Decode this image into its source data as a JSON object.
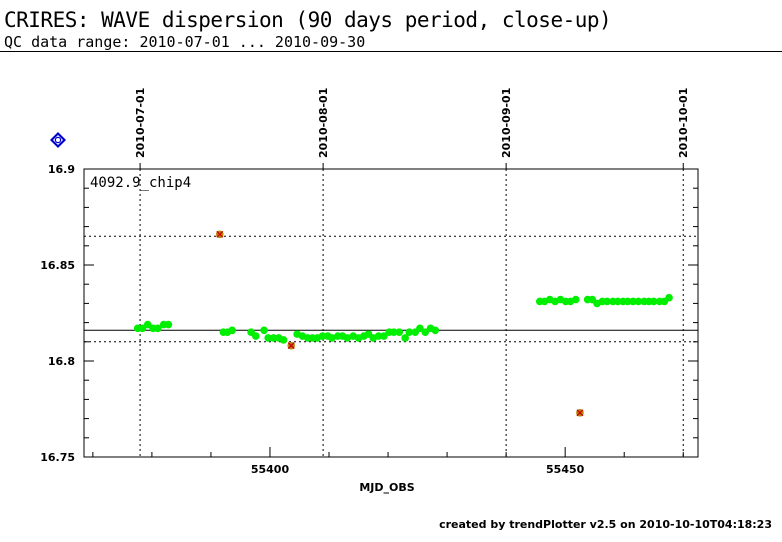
{
  "header": {
    "title": "CRIRES: WAVE dispersion (90 days period, close-up)",
    "subtitle": "QC data range: 2010-07-01 ... 2010-09-30"
  },
  "footer": {
    "prefix": "created by ",
    "tool": "trendPlotter v2.5",
    "middle": " on ",
    "timestamp": "2010-10-10T04:18:23"
  },
  "chart_data": {
    "type": "scatter",
    "xlabel": "MJD_OBS",
    "ylabel": "",
    "xlim": [
      55368.5,
      55472.5
    ],
    "ylim": [
      16.75,
      16.9
    ],
    "y_ticks": [
      16.75,
      16.8,
      16.85,
      16.9
    ],
    "y_tick_labels": [
      "16.75",
      "16.8",
      "16.85",
      "16.9"
    ],
    "x_ticks": [
      55400,
      55450
    ],
    "x_tick_labels": [
      "55400",
      "55450"
    ],
    "date_ticks": [
      {
        "mjd": 55378,
        "label": "2010-07-01"
      },
      {
        "mjd": 55409,
        "label": "2010-08-01"
      },
      {
        "mjd": 55440,
        "label": "2010-09-01"
      },
      {
        "mjd": 55470,
        "label": "2010-10-01"
      }
    ],
    "panel_label": "4092.9_chip4",
    "marker_icon": "blue-diamond-icon",
    "grid": true,
    "reference_lines": {
      "mean": 16.816,
      "upper": 16.865,
      "lower": 16.81
    },
    "colors": {
      "ok_points": "#00ee00",
      "outlier_points": "#b8860b",
      "outlier_mark": "#cc0000",
      "marker": "#0000cc"
    },
    "series": [
      {
        "values": [
          [
            55377.6,
            16.817
          ],
          [
            55378.4,
            16.817
          ],
          [
            55379.3,
            16.819
          ],
          [
            55380.2,
            16.817
          ],
          [
            55381.0,
            16.817
          ],
          [
            55382.0,
            16.819
          ],
          [
            55382.8,
            16.819
          ],
          [
            55392.1,
            16.815
          ],
          [
            55392.8,
            16.815
          ],
          [
            55393.6,
            16.816
          ],
          [
            55396.8,
            16.815
          ],
          [
            55397.6,
            16.813
          ],
          [
            55399.0,
            16.816
          ],
          [
            55399.7,
            16.812
          ],
          [
            55400.6,
            16.812
          ],
          [
            55401.5,
            16.812
          ],
          [
            55402.3,
            16.811
          ],
          [
            55404.6,
            16.814
          ],
          [
            55405.5,
            16.813
          ],
          [
            55406.4,
            16.812
          ],
          [
            55407.2,
            16.812
          ],
          [
            55408.0,
            16.812
          ],
          [
            55408.9,
            16.813
          ],
          [
            55409.8,
            16.813
          ],
          [
            55410.5,
            16.812
          ],
          [
            55411.5,
            16.813
          ],
          [
            55412.3,
            16.813
          ],
          [
            55413.1,
            16.812
          ],
          [
            55414.1,
            16.813
          ],
          [
            55415.0,
            16.812
          ],
          [
            55415.9,
            16.813
          ],
          [
            55416.7,
            16.814
          ],
          [
            55417.5,
            16.812
          ],
          [
            55418.4,
            16.813
          ],
          [
            55419.3,
            16.813
          ],
          [
            55420.2,
            16.815
          ],
          [
            55421.0,
            16.815
          ],
          [
            55421.9,
            16.815
          ],
          [
            55422.9,
            16.812
          ],
          [
            55423.6,
            16.815
          ],
          [
            55424.6,
            16.815
          ],
          [
            55425.4,
            16.817
          ],
          [
            55426.3,
            16.815
          ],
          [
            55427.2,
            16.817
          ],
          [
            55428.0,
            16.816
          ],
          [
            55445.7,
            16.831
          ],
          [
            55446.5,
            16.831
          ],
          [
            55447.4,
            16.832
          ],
          [
            55448.3,
            16.831
          ],
          [
            55449.2,
            16.832
          ],
          [
            55450.1,
            16.831
          ],
          [
            55450.9,
            16.831
          ],
          [
            55451.8,
            16.832
          ],
          [
            55453.8,
            16.832
          ],
          [
            55454.6,
            16.832
          ],
          [
            55455.4,
            16.83
          ],
          [
            55456.3,
            16.831
          ],
          [
            55457.1,
            16.831
          ],
          [
            55458.1,
            16.831
          ],
          [
            55458.9,
            16.831
          ],
          [
            55459.8,
            16.831
          ],
          [
            55460.6,
            16.831
          ],
          [
            55461.5,
            16.831
          ],
          [
            55462.4,
            16.831
          ],
          [
            55463.4,
            16.831
          ],
          [
            55464.2,
            16.831
          ],
          [
            55465.0,
            16.831
          ],
          [
            55466.0,
            16.831
          ],
          [
            55466.8,
            16.831
          ],
          [
            55467.6,
            16.833
          ]
        ]
      },
      {
        "values": [
          [
            55391.5,
            16.866
          ],
          [
            55403.6,
            16.808
          ],
          [
            55452.5,
            16.773
          ]
        ]
      }
    ]
  }
}
